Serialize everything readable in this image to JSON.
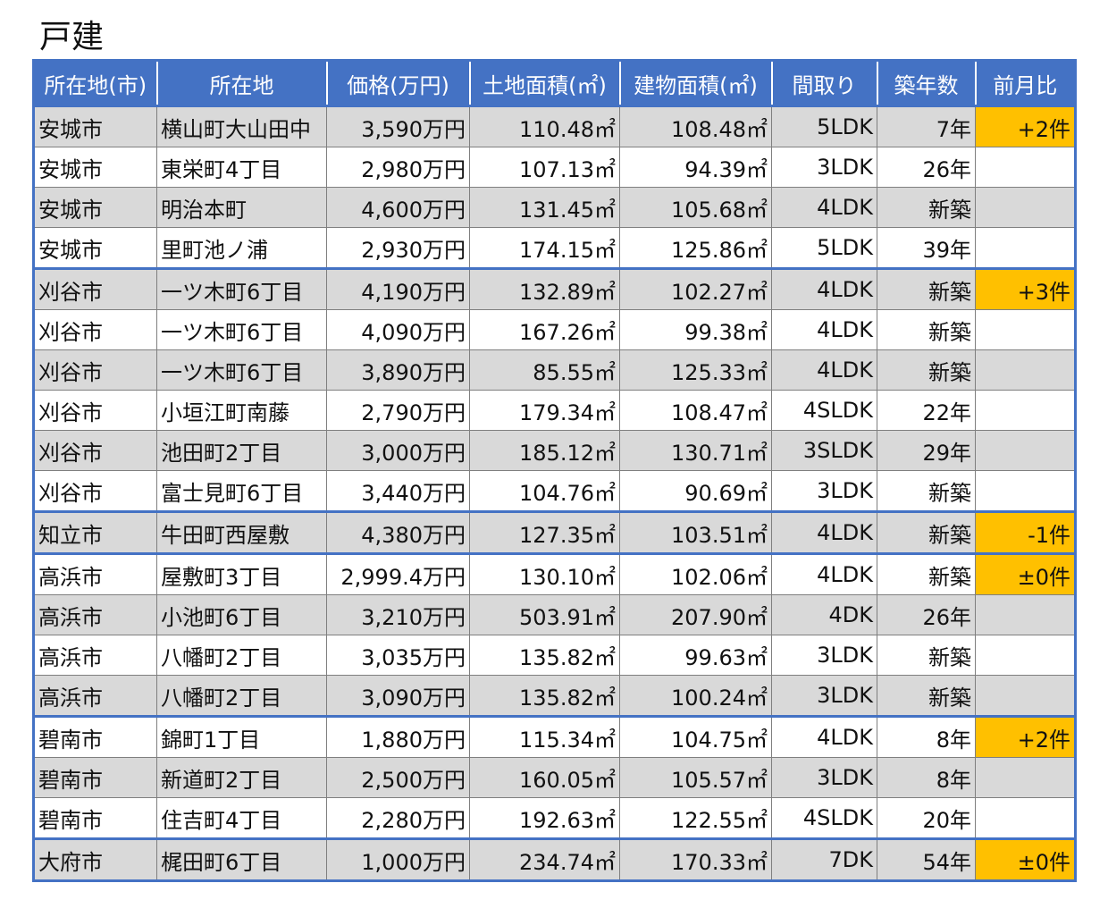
{
  "title": "戸建",
  "columns": [
    "所在地(市)",
    "所在地",
    "価格(万円)",
    "土地面積(㎡)",
    "建物面積(㎡)",
    "間取り",
    "築年数",
    "前月比"
  ],
  "rows": [
    {
      "city": "安城市",
      "town": "横山町大山田中",
      "price": "3,590万円",
      "land": "110.48㎡",
      "building": "108.48㎡",
      "layout": "5LDK",
      "age": "7年",
      "change": "+2件",
      "group_start": true,
      "shade": "gray",
      "highlight": true
    },
    {
      "city": "安城市",
      "town": "東栄町4丁目",
      "price": "2,980万円",
      "land": "107.13㎡",
      "building": "94.39㎡",
      "layout": "3LDK",
      "age": "26年",
      "change": "",
      "group_start": false,
      "shade": "white",
      "highlight": false
    },
    {
      "city": "安城市",
      "town": "明治本町",
      "price": "4,600万円",
      "land": "131.45㎡",
      "building": "105.68㎡",
      "layout": "4LDK",
      "age": "新築",
      "change": "",
      "group_start": false,
      "shade": "gray",
      "highlight": false
    },
    {
      "city": "安城市",
      "town": "里町池ノ浦",
      "price": "2,930万円",
      "land": "174.15㎡",
      "building": "125.86㎡",
      "layout": "5LDK",
      "age": "39年",
      "change": "",
      "group_start": false,
      "shade": "white",
      "highlight": false
    },
    {
      "city": "刈谷市",
      "town": "一ツ木町6丁目",
      "price": "4,190万円",
      "land": "132.89㎡",
      "building": "102.27㎡",
      "layout": "4LDK",
      "age": "新築",
      "change": "+3件",
      "group_start": true,
      "shade": "gray",
      "highlight": true
    },
    {
      "city": "刈谷市",
      "town": "一ツ木町6丁目",
      "price": "4,090万円",
      "land": "167.26㎡",
      "building": "99.38㎡",
      "layout": "4LDK",
      "age": "新築",
      "change": "",
      "group_start": false,
      "shade": "white",
      "highlight": false
    },
    {
      "city": "刈谷市",
      "town": "一ツ木町6丁目",
      "price": "3,890万円",
      "land": "85.55㎡",
      "building": "125.33㎡",
      "layout": "4LDK",
      "age": "新築",
      "change": "",
      "group_start": false,
      "shade": "gray",
      "highlight": false
    },
    {
      "city": "刈谷市",
      "town": "小垣江町南藤",
      "price": "2,790万円",
      "land": "179.34㎡",
      "building": "108.47㎡",
      "layout": "4SLDK",
      "age": "22年",
      "change": "",
      "group_start": false,
      "shade": "white",
      "highlight": false
    },
    {
      "city": "刈谷市",
      "town": "池田町2丁目",
      "price": "3,000万円",
      "land": "185.12㎡",
      "building": "130.71㎡",
      "layout": "3SLDK",
      "age": "29年",
      "change": "",
      "group_start": false,
      "shade": "gray",
      "highlight": false
    },
    {
      "city": "刈谷市",
      "town": "富士見町6丁目",
      "price": "3,440万円",
      "land": "104.76㎡",
      "building": "90.69㎡",
      "layout": "3LDK",
      "age": "新築",
      "change": "",
      "group_start": false,
      "shade": "white",
      "highlight": false
    },
    {
      "city": "知立市",
      "town": "牛田町西屋敷",
      "price": "4,380万円",
      "land": "127.35㎡",
      "building": "103.51㎡",
      "layout": "4LDK",
      "age": "新築",
      "change": "-1件",
      "group_start": true,
      "shade": "gray",
      "highlight": true
    },
    {
      "city": "高浜市",
      "town": "屋敷町3丁目",
      "price": "2,999.4万円",
      "land": "130.10㎡",
      "building": "102.06㎡",
      "layout": "4LDK",
      "age": "新築",
      "change": "±0件",
      "group_start": true,
      "shade": "white",
      "highlight": true
    },
    {
      "city": "高浜市",
      "town": "小池町6丁目",
      "price": "3,210万円",
      "land": "503.91㎡",
      "building": "207.90㎡",
      "layout": "4DK",
      "age": "26年",
      "change": "",
      "group_start": false,
      "shade": "gray",
      "highlight": false
    },
    {
      "city": "高浜市",
      "town": "八幡町2丁目",
      "price": "3,035万円",
      "land": "135.82㎡",
      "building": "99.63㎡",
      "layout": "3LDK",
      "age": "新築",
      "change": "",
      "group_start": false,
      "shade": "white",
      "highlight": false
    },
    {
      "city": "高浜市",
      "town": "八幡町2丁目",
      "price": "3,090万円",
      "land": "135.82㎡",
      "building": "100.24㎡",
      "layout": "3LDK",
      "age": "新築",
      "change": "",
      "group_start": false,
      "shade": "gray",
      "highlight": false
    },
    {
      "city": "碧南市",
      "town": "錦町1丁目",
      "price": "1,880万円",
      "land": "115.34㎡",
      "building": "104.75㎡",
      "layout": "4LDK",
      "age": "8年",
      "change": "+2件",
      "group_start": true,
      "shade": "white",
      "highlight": true
    },
    {
      "city": "碧南市",
      "town": "新道町2丁目",
      "price": "2,500万円",
      "land": "160.05㎡",
      "building": "105.57㎡",
      "layout": "3LDK",
      "age": "8年",
      "change": "",
      "group_start": false,
      "shade": "gray",
      "highlight": false
    },
    {
      "city": "碧南市",
      "town": "住吉町4丁目",
      "price": "2,280万円",
      "land": "192.63㎡",
      "building": "122.55㎡",
      "layout": "4SLDK",
      "age": "20年",
      "change": "",
      "group_start": false,
      "shade": "white",
      "highlight": false
    },
    {
      "city": "大府市",
      "town": "梶田町6丁目",
      "price": "1,000万円",
      "land": "234.74㎡",
      "building": "170.33㎡",
      "layout": "7DK",
      "age": "54年",
      "change": "±0件",
      "group_start": true,
      "shade": "gray",
      "highlight": true
    }
  ]
}
